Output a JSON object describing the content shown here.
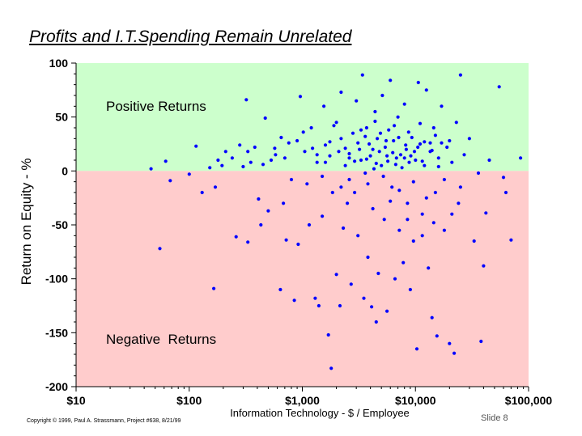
{
  "chart_data": {
    "type": "scatter",
    "title": "Profits and I.T.Spending Remain Unrelated",
    "xlabel": "Information Technology - $ / Employee",
    "ylabel": "Return on Equity - %",
    "x_scale": "log",
    "xlim": [
      10,
      100000
    ],
    "ylim": [
      -200,
      100
    ],
    "x_ticks": [
      10,
      100,
      1000,
      10000,
      100000
    ],
    "x_tick_labels": [
      "$10",
      "$100",
      "$1,000",
      "$10,000",
      "$100,000"
    ],
    "y_ticks": [
      100,
      50,
      0,
      -50,
      -100,
      -150,
      -200
    ],
    "y_tick_labels": [
      "100",
      "50",
      "0",
      "-50",
      "-100",
      "-150",
      "-200"
    ],
    "grid": false,
    "regions": [
      {
        "label": "Positive Returns",
        "y_from": 0,
        "y_to": 100,
        "color": "#ccffcc"
      },
      {
        "label": "Negative  Returns",
        "y_from": -200,
        "y_to": 0,
        "color": "#ffcccc"
      }
    ],
    "marker_color": "#0000ff",
    "series": [
      {
        "values_note_free": true,
        "points": [
          [
            46,
            2
          ],
          [
            55,
            -72
          ],
          [
            62,
            9
          ],
          [
            68,
            -9
          ],
          [
            100,
            -3
          ],
          [
            115,
            23
          ],
          [
            130,
            -20
          ],
          [
            152,
            3
          ],
          [
            165,
            -109
          ],
          [
            170,
            -15
          ],
          [
            180,
            10
          ],
          [
            195,
            5
          ],
          [
            210,
            18
          ],
          [
            260,
            -61
          ],
          [
            280,
            24
          ],
          [
            300,
            4
          ],
          [
            320,
            66
          ],
          [
            330,
            -66
          ],
          [
            350,
            8
          ],
          [
            380,
            22
          ],
          [
            410,
            -26
          ],
          [
            430,
            -50
          ],
          [
            470,
            49
          ],
          [
            500,
            -37
          ],
          [
            530,
            10
          ],
          [
            570,
            21
          ],
          [
            640,
            -110
          ],
          [
            650,
            31
          ],
          [
            680,
            -30
          ],
          [
            720,
            -64
          ],
          [
            800,
            -8
          ],
          [
            850,
            -120
          ],
          [
            920,
            -68
          ],
          [
            960,
            69
          ],
          [
            1020,
            36
          ],
          [
            1100,
            -12
          ],
          [
            1150,
            -50
          ],
          [
            1230,
            21
          ],
          [
            1300,
            -118
          ],
          [
            1350,
            15
          ],
          [
            1400,
            -125
          ],
          [
            1500,
            -42
          ],
          [
            1550,
            60
          ],
          [
            1600,
            8
          ],
          [
            1700,
            -152
          ],
          [
            1750,
            27
          ],
          [
            1800,
            -183
          ],
          [
            1850,
            -20
          ],
          [
            1900,
            42
          ],
          [
            2000,
            -96
          ],
          [
            2100,
            18
          ],
          [
            2150,
            -125
          ],
          [
            2200,
            73
          ],
          [
            2300,
            -53
          ],
          [
            2400,
            5
          ],
          [
            2500,
            -30
          ],
          [
            2600,
            12
          ],
          [
            2700,
            -105
          ],
          [
            2800,
            35
          ],
          [
            2900,
            -20
          ],
          [
            3000,
            65
          ],
          [
            3100,
            -60
          ],
          [
            3200,
            20
          ],
          [
            3300,
            10
          ],
          [
            3400,
            89
          ],
          [
            3500,
            -118
          ],
          [
            3600,
            -2
          ],
          [
            3700,
            40
          ],
          [
            3800,
            -80
          ],
          [
            3900,
            25
          ],
          [
            4000,
            14
          ],
          [
            4100,
            -126
          ],
          [
            4300,
            2
          ],
          [
            4400,
            55
          ],
          [
            4500,
            -140
          ],
          [
            4600,
            30
          ],
          [
            4700,
            -95
          ],
          [
            4800,
            18
          ],
          [
            5000,
            5
          ],
          [
            5100,
            70
          ],
          [
            5300,
            -45
          ],
          [
            5400,
            22
          ],
          [
            5600,
            -130
          ],
          [
            5700,
            9
          ],
          [
            5800,
            38
          ],
          [
            6000,
            84
          ],
          [
            6200,
            -15
          ],
          [
            6400,
            28
          ],
          [
            6600,
            -100
          ],
          [
            6800,
            12
          ],
          [
            7000,
            50
          ],
          [
            7200,
            -55
          ],
          [
            7400,
            15
          ],
          [
            7600,
            3
          ],
          [
            7800,
            -85
          ],
          [
            8000,
            62
          ],
          [
            8300,
            20
          ],
          [
            8500,
            -30
          ],
          [
            8800,
            8
          ],
          [
            9000,
            -110
          ],
          [
            9300,
            31
          ],
          [
            9600,
            -65
          ],
          [
            10000,
            10
          ],
          [
            10300,
            -165
          ],
          [
            10600,
            82
          ],
          [
            11000,
            25
          ],
          [
            11500,
            -40
          ],
          [
            12000,
            5
          ],
          [
            12500,
            75
          ],
          [
            13000,
            -90
          ],
          [
            13500,
            18
          ],
          [
            14000,
            -136
          ],
          [
            14500,
            40
          ],
          [
            15000,
            -20
          ],
          [
            15500,
            -153
          ],
          [
            16000,
            12
          ],
          [
            17000,
            60
          ],
          [
            18000,
            -55
          ],
          [
            19000,
            22
          ],
          [
            20000,
            -160
          ],
          [
            21000,
            8
          ],
          [
            22000,
            -169
          ],
          [
            23000,
            45
          ],
          [
            24000,
            -30
          ],
          [
            25000,
            89
          ],
          [
            27000,
            15
          ],
          [
            30000,
            30
          ],
          [
            33000,
            -65
          ],
          [
            36000,
            -2
          ],
          [
            38000,
            -158
          ],
          [
            40000,
            -88
          ],
          [
            42000,
            -39
          ],
          [
            45000,
            10
          ],
          [
            55000,
            78
          ],
          [
            60000,
            -6
          ],
          [
            63000,
            -20
          ],
          [
            70000,
            -64
          ],
          [
            85000,
            12
          ],
          [
            900,
            28
          ],
          [
            1600,
            24
          ],
          [
            2200,
            30
          ],
          [
            2600,
            16
          ],
          [
            3100,
            26
          ],
          [
            3600,
            32
          ],
          [
            4200,
            20
          ],
          [
            4900,
            35
          ],
          [
            5500,
            28
          ],
          [
            6300,
            17
          ],
          [
            7100,
            31
          ],
          [
            8200,
            24
          ],
          [
            9100,
            14
          ],
          [
            10500,
            22
          ],
          [
            12000,
            27
          ],
          [
            14000,
            19
          ],
          [
            17000,
            26
          ],
          [
            700,
            12
          ],
          [
            1050,
            18
          ],
          [
            1350,
            8
          ],
          [
            1750,
            14
          ],
          [
            2400,
            21
          ],
          [
            2900,
            9
          ],
          [
            3700,
            11
          ],
          [
            4500,
            7
          ],
          [
            5600,
            14
          ],
          [
            6700,
            6
          ],
          [
            8000,
            12
          ],
          [
            9800,
            18
          ],
          [
            11500,
            9
          ],
          [
            13500,
            26
          ],
          [
            16000,
            4
          ],
          [
            1200,
            40
          ],
          [
            2000,
            45
          ],
          [
            3300,
            38
          ],
          [
            4400,
            46
          ],
          [
            6500,
            42
          ],
          [
            8700,
            36
          ],
          [
            11000,
            44
          ],
          [
            15000,
            33
          ],
          [
            20000,
            28
          ],
          [
            2600,
            -8
          ],
          [
            3800,
            -12
          ],
          [
            5200,
            -5
          ],
          [
            7200,
            -18
          ],
          [
            9600,
            -10
          ],
          [
            12500,
            -25
          ],
          [
            18000,
            -8
          ],
          [
            1500,
            -5
          ],
          [
            2200,
            -15
          ],
          [
            4200,
            -35
          ],
          [
            6000,
            -28
          ],
          [
            8500,
            -45
          ],
          [
            11500,
            -60
          ],
          [
            14500,
            -48
          ],
          [
            21000,
            -40
          ],
          [
            25000,
            -15
          ],
          [
            580,
            15
          ],
          [
            450,
            6
          ],
          [
            760,
            26
          ],
          [
            240,
            12
          ],
          [
            330,
            18
          ]
        ]
      }
    ]
  },
  "footer": {
    "copyright": "Copyright © 1999,  Paul A. Strassmann, Project #638, 8/21/99",
    "slide": "Slide 8"
  }
}
